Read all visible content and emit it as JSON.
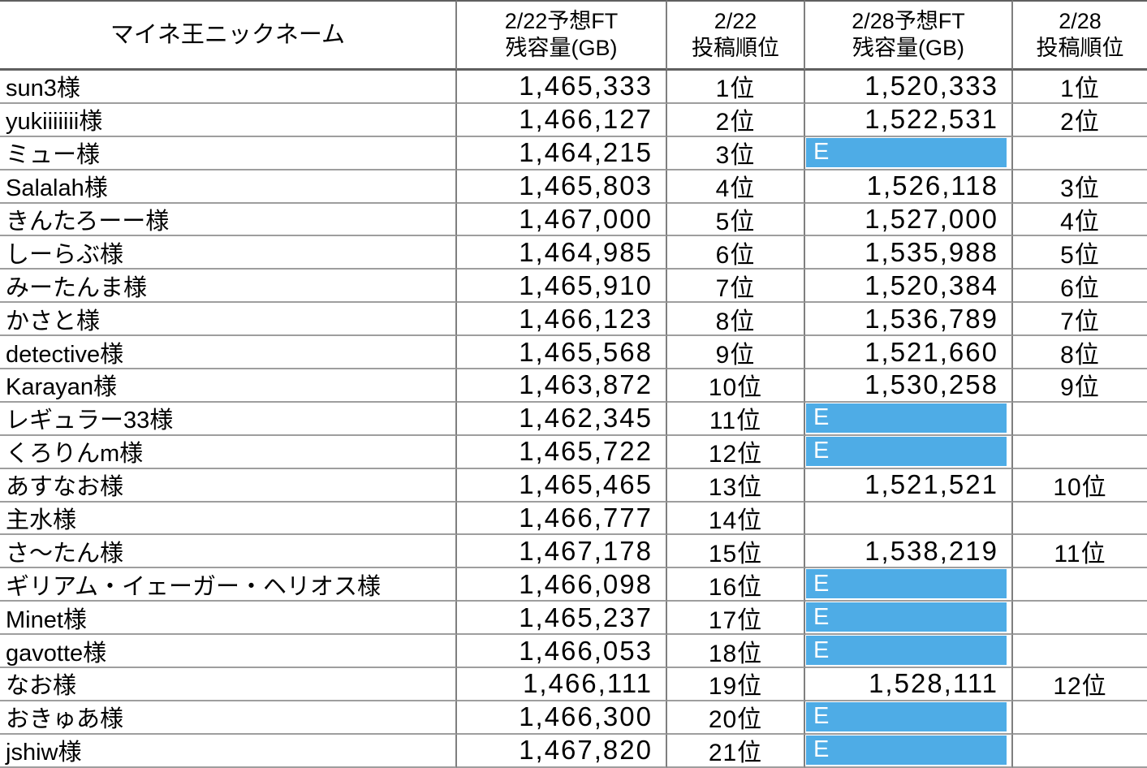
{
  "table": {
    "header": {
      "name": "マイネ王ニックネーム",
      "ft22_l1": "2/22予想FT",
      "ft22_l2": "残容量(GB)",
      "rank22_l1": "2/22",
      "rank22_l2": "投稿順位",
      "ft28_l1": "2/28予想FT",
      "ft28_l2": "残容量(GB)",
      "rank28_l1": "2/28",
      "rank28_l2": "投稿順位"
    },
    "rows": [
      {
        "name": "sun3様",
        "ft22": "1,465,333",
        "rank22": "1位",
        "ft28": "1,520,333",
        "rank28": "1位",
        "highlight": false
      },
      {
        "name": "yukiiiiiii様",
        "ft22": "1,466,127",
        "rank22": "2位",
        "ft28": "1,522,531",
        "rank28": "2位",
        "highlight": false
      },
      {
        "name": "ミュー様",
        "ft22": "1,464,215",
        "rank22": "3位",
        "ft28": "E",
        "rank28": "",
        "highlight": true
      },
      {
        "name": "Salalah様",
        "ft22": "1,465,803",
        "rank22": "4位",
        "ft28": "1,526,118",
        "rank28": "3位",
        "highlight": false
      },
      {
        "name": "きんたろーー様",
        "ft22": "1,467,000",
        "rank22": "5位",
        "ft28": "1,527,000",
        "rank28": "4位",
        "highlight": false
      },
      {
        "name": "しーらぶ様",
        "ft22": "1,464,985",
        "rank22": "6位",
        "ft28": "1,535,988",
        "rank28": "5位",
        "highlight": false
      },
      {
        "name": "みーたんま様",
        "ft22": "1,465,910",
        "rank22": "7位",
        "ft28": "1,520,384",
        "rank28": "6位",
        "highlight": false
      },
      {
        "name": "かさと様",
        "ft22": "1,466,123",
        "rank22": "8位",
        "ft28": "1,536,789",
        "rank28": "7位",
        "highlight": false
      },
      {
        "name": "detective様",
        "ft22": "1,465,568",
        "rank22": "9位",
        "ft28": "1,521,660",
        "rank28": "8位",
        "highlight": false
      },
      {
        "name": "Karayan様",
        "ft22": "1,463,872",
        "rank22": "10位",
        "ft28": "1,530,258",
        "rank28": "9位",
        "highlight": false
      },
      {
        "name": "レギュラー33様",
        "ft22": "1,462,345",
        "rank22": "11位",
        "ft28": "E",
        "rank28": "",
        "highlight": true
      },
      {
        "name": "くろりんm様",
        "ft22": "1,465,722",
        "rank22": "12位",
        "ft28": "E",
        "rank28": "",
        "highlight": true
      },
      {
        "name": "あすなお様",
        "ft22": "1,465,465",
        "rank22": "13位",
        "ft28": "1,521,521",
        "rank28": "10位",
        "highlight": false
      },
      {
        "name": "主水様",
        "ft22": "1,466,777",
        "rank22": "14位",
        "ft28": "",
        "rank28": "",
        "highlight": false
      },
      {
        "name": "さ～たん様",
        "ft22": "1,467,178",
        "rank22": "15位",
        "ft28": "1,538,219",
        "rank28": "11位",
        "highlight": false
      },
      {
        "name": "ギリアム・イェーガー・ヘリオス様",
        "ft22": "1,466,098",
        "rank22": "16位",
        "ft28": "E",
        "rank28": "",
        "highlight": true
      },
      {
        "name": "Minet様",
        "ft22": "1,465,237",
        "rank22": "17位",
        "ft28": "E",
        "rank28": "",
        "highlight": true
      },
      {
        "name": "gavotte様",
        "ft22": "1,466,053",
        "rank22": "18位",
        "ft28": "E",
        "rank28": "",
        "highlight": true
      },
      {
        "name": "なお様",
        "ft22": "1,466,111",
        "rank22": "19位",
        "ft28": "1,528,111",
        "rank28": "12位",
        "highlight": false
      },
      {
        "name": "おきゅあ様",
        "ft22": "1,466,300",
        "rank22": "20位",
        "ft28": "E",
        "rank28": "",
        "highlight": true
      },
      {
        "name": "jshiw様",
        "ft22": "1,467,820",
        "rank22": "21位",
        "ft28": "E",
        "rank28": "",
        "highlight": true
      }
    ]
  },
  "colors": {
    "highlight_blue": "#4EACE6",
    "highlight_text": "#ffffff",
    "column_grid": "#7f7f7f",
    "row_grid": "#9e9e9e",
    "header_border": "#5f5f5f",
    "text": "#000000",
    "background": "#ffffff"
  }
}
